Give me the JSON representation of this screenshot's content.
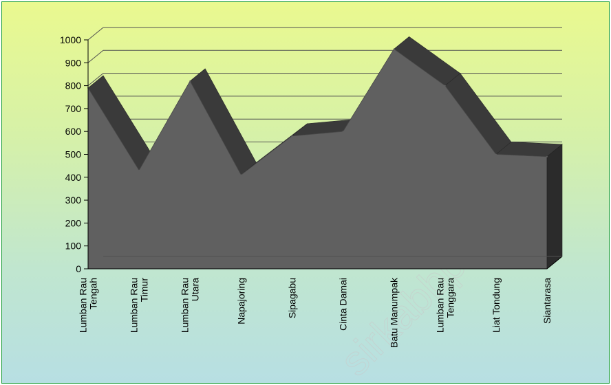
{
  "watermark": "sirkabbps.go.id",
  "chart_data": {
    "type": "area",
    "title": "",
    "xlabel": "",
    "ylabel": "",
    "ylim": [
      0,
      1000
    ],
    "yticks": [
      "0",
      "100",
      "200",
      "300",
      "400",
      "500",
      "600",
      "700",
      "800",
      "900",
      "1000"
    ],
    "categories": [
      "Lumban Rau Tengah",
      "Lumban Rau Timur",
      "Lumban Rau Utara",
      "Napajoring",
      "Sipagabu",
      "Cinta Damai",
      "Batu Manumpak",
      "Lumban Rau Tenggara",
      "Liat Tondung",
      "Siantarasa"
    ],
    "category_lines": [
      [
        "Lumban Rau",
        "Tengah"
      ],
      [
        "Lumban Rau",
        "Timur"
      ],
      [
        "Lumban Rau",
        "Utara"
      ],
      [
        "Napajoring"
      ],
      [
        "Sipagabu"
      ],
      [
        "Cinta Damai"
      ],
      [
        "Batu Manumpak"
      ],
      [
        "Lumban Rau",
        "Tenggara"
      ],
      [
        "Liat Tondung"
      ],
      [
        "Siantarasa"
      ]
    ],
    "values": [
      790,
      430,
      820,
      410,
      580,
      600,
      960,
      800,
      500,
      490
    ],
    "grid": true,
    "legend": "none",
    "colors": {
      "front": "#606060",
      "top": "#3a3a3a",
      "side": "#2b2b2b",
      "grid": "#505050"
    }
  }
}
